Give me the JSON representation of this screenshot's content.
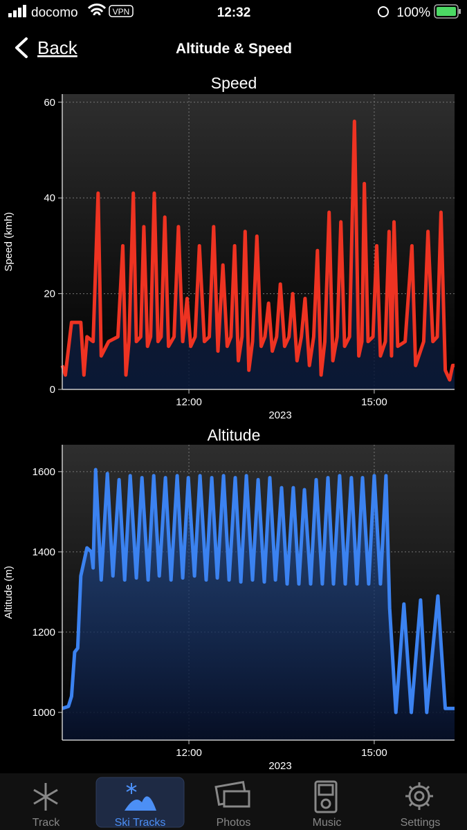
{
  "status_bar": {
    "carrier": "docomo",
    "vpn": "VPN",
    "time": "12:32",
    "battery": "100%"
  },
  "nav": {
    "back": "Back",
    "title": "Altitude & Speed"
  },
  "chart_data": [
    {
      "type": "line",
      "title": "Speed",
      "y_label": "Speed (kmh)",
      "x_label": "2023",
      "x": [
        9.95,
        10.0,
        10.1,
        10.25,
        10.3,
        10.35,
        10.45,
        10.53,
        10.58,
        10.7,
        10.85,
        10.93,
        10.98,
        11.03,
        11.1,
        11.15,
        11.22,
        11.27,
        11.33,
        11.38,
        11.44,
        11.5,
        11.55,
        11.61,
        11.67,
        11.76,
        11.83,
        11.9,
        11.97,
        12.03,
        12.1,
        12.17,
        12.25,
        12.33,
        12.4,
        12.47,
        12.55,
        12.62,
        12.68,
        12.74,
        12.8,
        12.86,
        12.91,
        12.97,
        13.03,
        13.1,
        13.17,
        13.23,
        13.29,
        13.35,
        13.42,
        13.48,
        13.55,
        13.62,
        13.68,
        13.75,
        13.82,
        13.88,
        13.95,
        14.02,
        14.08,
        14.14,
        14.2,
        14.27,
        14.33,
        14.4,
        14.46,
        14.52,
        14.6,
        14.68,
        14.75,
        14.8,
        14.84,
        14.9,
        14.98,
        15.04,
        15.1,
        15.18,
        15.24,
        15.28,
        15.32,
        15.38,
        15.5,
        15.61,
        15.67,
        15.8,
        15.87,
        15.95,
        16.02,
        16.08,
        16.15,
        16.22,
        16.27,
        16.3
      ],
      "series": [
        {
          "color": "#ee3322",
          "values": [
            5,
            3,
            14,
            14,
            3,
            11,
            10,
            41,
            7,
            10,
            11,
            30,
            3,
            10,
            41,
            10,
            11,
            34,
            9,
            11,
            41,
            10,
            11,
            36,
            9,
            11,
            34,
            10,
            19,
            9,
            11,
            30,
            10,
            11,
            34,
            8,
            26,
            9,
            11,
            30,
            6,
            11,
            33,
            4,
            10,
            32,
            9,
            11,
            18,
            8,
            11,
            22,
            9,
            11,
            20,
            6,
            11,
            19,
            5,
            11,
            29,
            3,
            10,
            37,
            6,
            11,
            35,
            9,
            11,
            56,
            7,
            10,
            43,
            10,
            11,
            30,
            7,
            10,
            33,
            7,
            35,
            9,
            10,
            30,
            5,
            10,
            33,
            10,
            11,
            37,
            4,
            2,
            5,
            5
          ]
        }
      ],
      "xlim": [
        9.95,
        16.3
      ],
      "ylim": [
        0,
        61.7
      ],
      "xticks": [
        {
          "value": 12,
          "label": "12:00"
        },
        {
          "value": 15,
          "label": "15:00"
        }
      ],
      "yticks": [
        0,
        20,
        40,
        60
      ],
      "grid": true
    },
    {
      "type": "line",
      "title": "Altitude",
      "y_label": "Altitude (m)",
      "x_label": "2023",
      "x": [
        9.95,
        10.05,
        10.1,
        10.15,
        10.2,
        10.25,
        10.35,
        10.42,
        10.45,
        10.49,
        10.58,
        10.68,
        10.77,
        10.87,
        10.96,
        11.05,
        11.15,
        11.24,
        11.34,
        11.43,
        11.52,
        11.62,
        11.71,
        11.81,
        11.9,
        11.99,
        12.09,
        12.18,
        12.28,
        12.37,
        12.46,
        12.56,
        12.65,
        12.75,
        12.84,
        12.93,
        13.03,
        13.12,
        13.22,
        13.31,
        13.4,
        13.5,
        13.59,
        13.69,
        13.78,
        13.87,
        13.97,
        14.06,
        14.16,
        14.25,
        14.34,
        14.44,
        14.53,
        14.63,
        14.72,
        14.81,
        14.91,
        15.0,
        15.1,
        15.19,
        15.25,
        15.35,
        15.48,
        15.6,
        15.75,
        15.85,
        16.03,
        16.15,
        16.3
      ],
      "series": [
        {
          "color": "#3b82f0",
          "values": [
            1010,
            1015,
            1040,
            1150,
            1160,
            1340,
            1410,
            1400,
            1360,
            1605,
            1330,
            1595,
            1340,
            1580,
            1330,
            1590,
            1335,
            1585,
            1330,
            1590,
            1340,
            1585,
            1330,
            1590,
            1335,
            1585,
            1340,
            1590,
            1330,
            1585,
            1335,
            1590,
            1330,
            1585,
            1325,
            1590,
            1330,
            1580,
            1325,
            1585,
            1330,
            1560,
            1320,
            1560,
            1320,
            1555,
            1320,
            1580,
            1320,
            1585,
            1320,
            1590,
            1320,
            1585,
            1320,
            1585,
            1320,
            1590,
            1320,
            1590,
            1260,
            1000,
            1270,
            1000,
            1280,
            1000,
            1290,
            1010,
            1010
          ]
        }
      ],
      "xlim": [
        9.95,
        16.3
      ],
      "ylim": [
        931,
        1667
      ],
      "xticks": [
        {
          "value": 12,
          "label": "12:00"
        },
        {
          "value": 15,
          "label": "15:00"
        }
      ],
      "yticks": [
        1000,
        1200,
        1400,
        1600
      ],
      "grid": true
    }
  ],
  "tab_bar": {
    "tabs": [
      "Track",
      "Ski Tracks",
      "Photos",
      "Music",
      "Settings"
    ],
    "selected": 1
  }
}
